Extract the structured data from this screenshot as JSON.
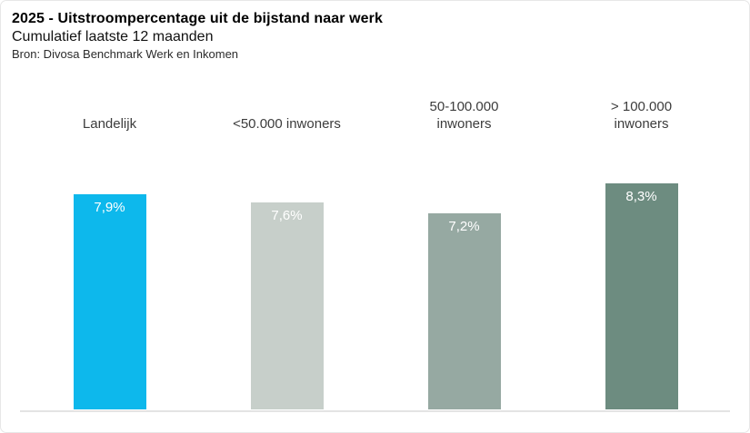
{
  "header": {
    "title": "2025 - Uitstroompercentage uit de bijstand naar werk",
    "subtitle": "Cumulatief laatste 12 maanden",
    "source": "Bron: Divosa Benchmark Werk en Inkomen"
  },
  "chart_data": {
    "type": "bar",
    "title": "2025 - Uitstroompercentage uit de bijstand naar werk",
    "subtitle": "Cumulatief laatste 12 maanden",
    "source": "Bron: Divosa Benchmark Werk en Inkomen",
    "categories": [
      "Landelijk",
      "<50.000 inwoners",
      "50-100.000 inwoners",
      "> 100.000 inwoners"
    ],
    "values": [
      7.9,
      7.6,
      7.2,
      8.3
    ],
    "value_labels": [
      "7,9%",
      "7,6%",
      "7,2%",
      "8,3%"
    ],
    "series_colors": [
      "#0db8ec",
      "#c7cfca",
      "#96a9a2",
      "#6d8c80"
    ],
    "value_label_color": "#ffffff",
    "value_label_position": "inside-top",
    "axis_line_color": "#e4e4e4",
    "ylim": [
      0,
      10
    ],
    "xlabel": "",
    "ylabel": "",
    "grid": false,
    "legend": "none"
  }
}
